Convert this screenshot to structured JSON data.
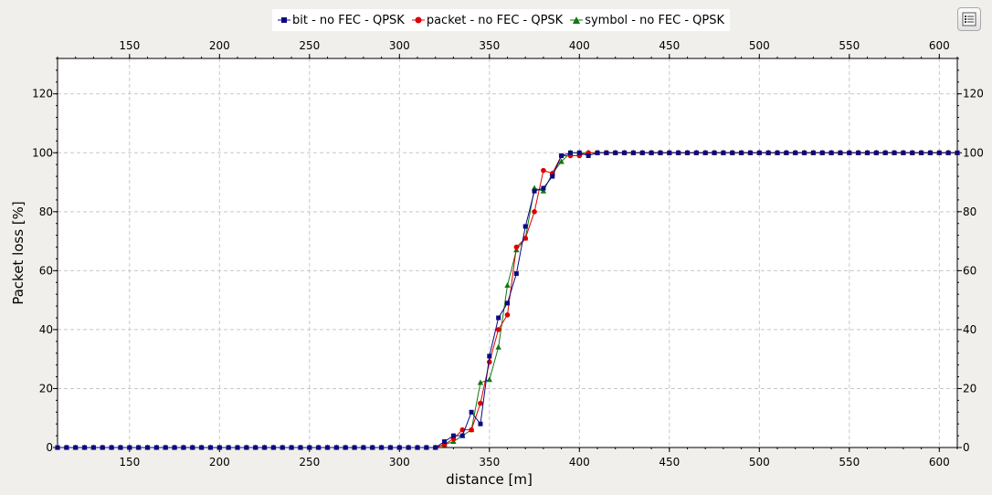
{
  "toolbar": {
    "menu_icon": "list-icon"
  },
  "colors": {
    "bit": "#0a0a80",
    "packet": "#dd0000",
    "symbol": "#117711",
    "grid": "#c8c8c8"
  },
  "chart_data": {
    "type": "line",
    "title": "",
    "xlabel": "distance [m]",
    "ylabel": "Packet loss [%]",
    "xlim": [
      110,
      610
    ],
    "ylim": [
      0,
      132
    ],
    "x_ticks": [
      150,
      200,
      250,
      300,
      350,
      400,
      450,
      500,
      550,
      600
    ],
    "y_ticks": [
      0,
      20,
      40,
      60,
      80,
      100,
      120
    ],
    "x_tick_labels": [
      "150",
      "200",
      "250",
      "300",
      "350",
      "400",
      "450",
      "500",
      "550",
      "600"
    ],
    "y_tick_labels": [
      "0",
      "20",
      "40",
      "60",
      "80",
      "100",
      "120"
    ],
    "grid": true,
    "secondary_axes": "top and right mirror the bottom and left axes",
    "legend_position": "top-center",
    "x": [
      110,
      115,
      120,
      125,
      130,
      135,
      140,
      145,
      150,
      155,
      160,
      165,
      170,
      175,
      180,
      185,
      190,
      195,
      200,
      205,
      210,
      215,
      220,
      225,
      230,
      235,
      240,
      245,
      250,
      255,
      260,
      265,
      270,
      275,
      280,
      285,
      290,
      295,
      300,
      305,
      310,
      315,
      320,
      325,
      330,
      335,
      340,
      345,
      350,
      355,
      360,
      365,
      370,
      375,
      380,
      385,
      390,
      395,
      400,
      405,
      410,
      415,
      420,
      425,
      430,
      435,
      440,
      445,
      450,
      455,
      460,
      465,
      470,
      475,
      480,
      485,
      490,
      495,
      500,
      505,
      510,
      515,
      520,
      525,
      530,
      535,
      540,
      545,
      550,
      555,
      560,
      565,
      570,
      575,
      580,
      585,
      590,
      595,
      600,
      605,
      610
    ],
    "series": [
      {
        "name": "bit - no FEC - QPSK",
        "marker": "square",
        "color": "#0a0a80",
        "values": [
          0,
          0,
          0,
          0,
          0,
          0,
          0,
          0,
          0,
          0,
          0,
          0,
          0,
          0,
          0,
          0,
          0,
          0,
          0,
          0,
          0,
          0,
          0,
          0,
          0,
          0,
          0,
          0,
          0,
          0,
          0,
          0,
          0,
          0,
          0,
          0,
          0,
          0,
          0,
          0,
          0,
          0,
          0,
          2,
          4,
          4,
          12,
          8,
          31,
          44,
          49,
          59,
          75,
          87,
          88,
          92,
          99,
          100,
          100,
          99,
          100,
          100,
          100,
          100,
          100,
          100,
          100,
          100,
          100,
          100,
          100,
          100,
          100,
          100,
          100,
          100,
          100,
          100,
          100,
          100,
          100,
          100,
          100,
          100,
          100,
          100,
          100,
          100,
          100,
          100,
          100,
          100,
          100,
          100,
          100,
          100,
          100,
          100,
          100,
          100,
          100
        ]
      },
      {
        "name": "packet - no FEC - QPSK",
        "marker": "circle",
        "color": "#dd0000",
        "values": [
          0,
          0,
          0,
          0,
          0,
          0,
          0,
          0,
          0,
          0,
          0,
          0,
          0,
          0,
          0,
          0,
          0,
          0,
          0,
          0,
          0,
          0,
          0,
          0,
          0,
          0,
          0,
          0,
          0,
          0,
          0,
          0,
          0,
          0,
          0,
          0,
          0,
          0,
          0,
          0,
          0,
          0,
          0,
          1,
          3,
          6,
          6,
          15,
          29,
          40,
          45,
          68,
          71,
          80,
          94,
          93,
          99,
          99,
          99,
          100,
          100,
          100,
          100,
          100,
          100,
          100,
          100,
          100,
          100,
          100,
          100,
          100,
          100,
          100,
          100,
          100,
          100,
          100,
          100,
          100,
          100,
          100,
          100,
          100,
          100,
          100,
          100,
          100,
          100,
          100,
          100,
          100,
          100,
          100,
          100,
          100,
          100,
          100,
          100,
          100,
          100
        ]
      },
      {
        "name": "symbol - no FEC - QPSK",
        "marker": "triangle",
        "color": "#117711",
        "values": [
          0,
          0,
          0,
          0,
          0,
          0,
          0,
          0,
          0,
          0,
          0,
          0,
          0,
          0,
          0,
          0,
          0,
          0,
          0,
          0,
          0,
          0,
          0,
          0,
          0,
          0,
          0,
          0,
          0,
          0,
          0,
          0,
          0,
          0,
          0,
          0,
          0,
          0,
          0,
          0,
          0,
          0,
          0,
          1,
          2,
          4,
          6,
          22,
          23,
          34,
          55,
          67,
          71,
          88,
          87,
          93,
          97,
          100,
          100,
          100,
          100,
          100,
          100,
          100,
          100,
          100,
          100,
          100,
          100,
          100,
          100,
          100,
          100,
          100,
          100,
          100,
          100,
          100,
          100,
          100,
          100,
          100,
          100,
          100,
          100,
          100,
          100,
          100,
          100,
          100,
          100,
          100,
          100,
          100,
          100,
          100,
          100,
          100,
          100,
          100,
          100
        ]
      }
    ]
  }
}
